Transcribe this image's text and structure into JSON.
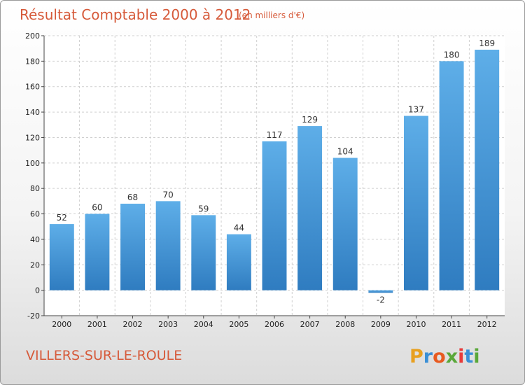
{
  "chart_data": {
    "type": "bar",
    "title": "Résultat Comptable 2000 à 2012",
    "subtitle": "(en milliers d'€)",
    "xlabel": "",
    "ylabel": "",
    "categories": [
      "2000",
      "2001",
      "2002",
      "2003",
      "2004",
      "2005",
      "2006",
      "2007",
      "2008",
      "2009",
      "2010",
      "2011",
      "2012"
    ],
    "values": [
      52,
      60,
      68,
      70,
      59,
      44,
      117,
      129,
      104,
      -2,
      137,
      180,
      189
    ],
    "value_labels": [
      "52",
      "60",
      "68",
      "70",
      "59",
      "44",
      "117",
      "129",
      "104",
      "-2",
      "137",
      "180",
      "189"
    ],
    "ylim": [
      -20,
      200
    ],
    "yticks": [
      -20,
      0,
      20,
      40,
      60,
      80,
      100,
      120,
      140,
      160,
      180,
      200
    ],
    "ytick_labels": [
      "-20",
      "0",
      "20",
      "40",
      "60",
      "80",
      "100",
      "120",
      "140",
      "160",
      "180",
      "200"
    ],
    "grid": true,
    "bar_color": "#3a8fd6"
  },
  "place_name": "VILLERS-SUR-LE-ROULE",
  "logo": {
    "text": "Proxiti",
    "letters": [
      "P",
      "r",
      "o",
      "x",
      "i",
      "t",
      "i"
    ],
    "letter_colors": [
      "#e8a020",
      "#3a8fd6",
      "#e85a20",
      "#5aa83a",
      "#e83a3a",
      "#3a8fd6",
      "#5aa83a"
    ]
  },
  "colors": {
    "title": "#d65a3a",
    "grid": "#cfcfcf",
    "plot_bg": "#ffffff"
  }
}
